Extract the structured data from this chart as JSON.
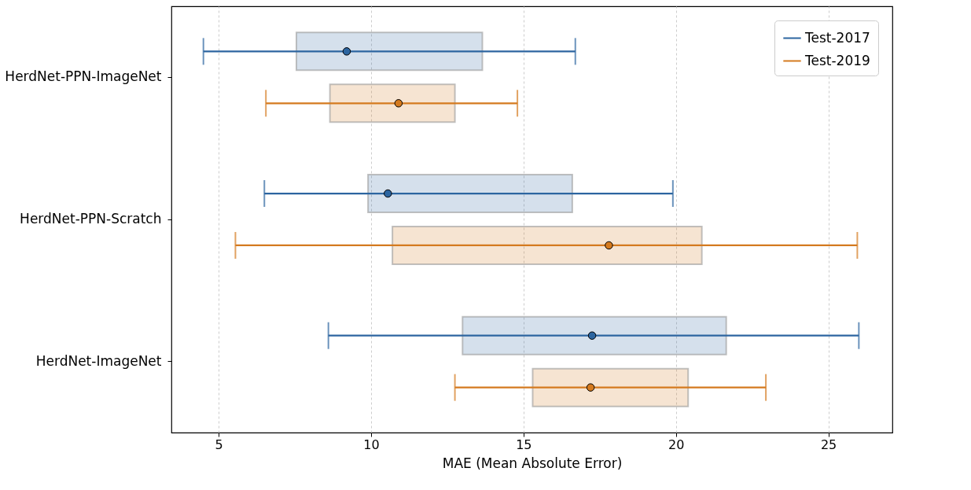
{
  "chart_data": {
    "type": "box",
    "orientation": "horizontal",
    "categories": [
      "HerdNet-PPN-ImageNet",
      "HerdNet-PPN-Scratch",
      "HerdNet-ImageNet"
    ],
    "xlabel": "MAE (Mean Absolute Error)",
    "xlim": [
      3.45,
      27.1
    ],
    "xticks": [
      5,
      10,
      15,
      20,
      25
    ],
    "grid": "x",
    "legend": "top right",
    "series": [
      {
        "name": "Test-2017",
        "color": "#2c65a0",
        "boxes": [
          {
            "low": 4.5,
            "q1": 7.55,
            "median": 9.2,
            "q3": 13.65,
            "high": 16.7
          },
          {
            "low": 6.5,
            "q1": 9.9,
            "median": 10.55,
            "q3": 16.6,
            "high": 19.9
          },
          {
            "low": 8.6,
            "q1": 13,
            "median": 17.25,
            "q3": 21.65,
            "high": 26
          }
        ]
      },
      {
        "name": "Test-2019",
        "color": "#d47a1f",
        "boxes": [
          {
            "low": 6.55,
            "q1": 8.65,
            "median": 10.9,
            "q3": 12.75,
            "high": 14.8
          },
          {
            "low": 5.55,
            "q1": 10.7,
            "median": 17.8,
            "q3": 20.85,
            "high": 25.95
          },
          {
            "low": 12.75,
            "q1": 15.3,
            "median": 17.2,
            "q3": 20.4,
            "high": 22.95
          }
        ]
      }
    ]
  }
}
